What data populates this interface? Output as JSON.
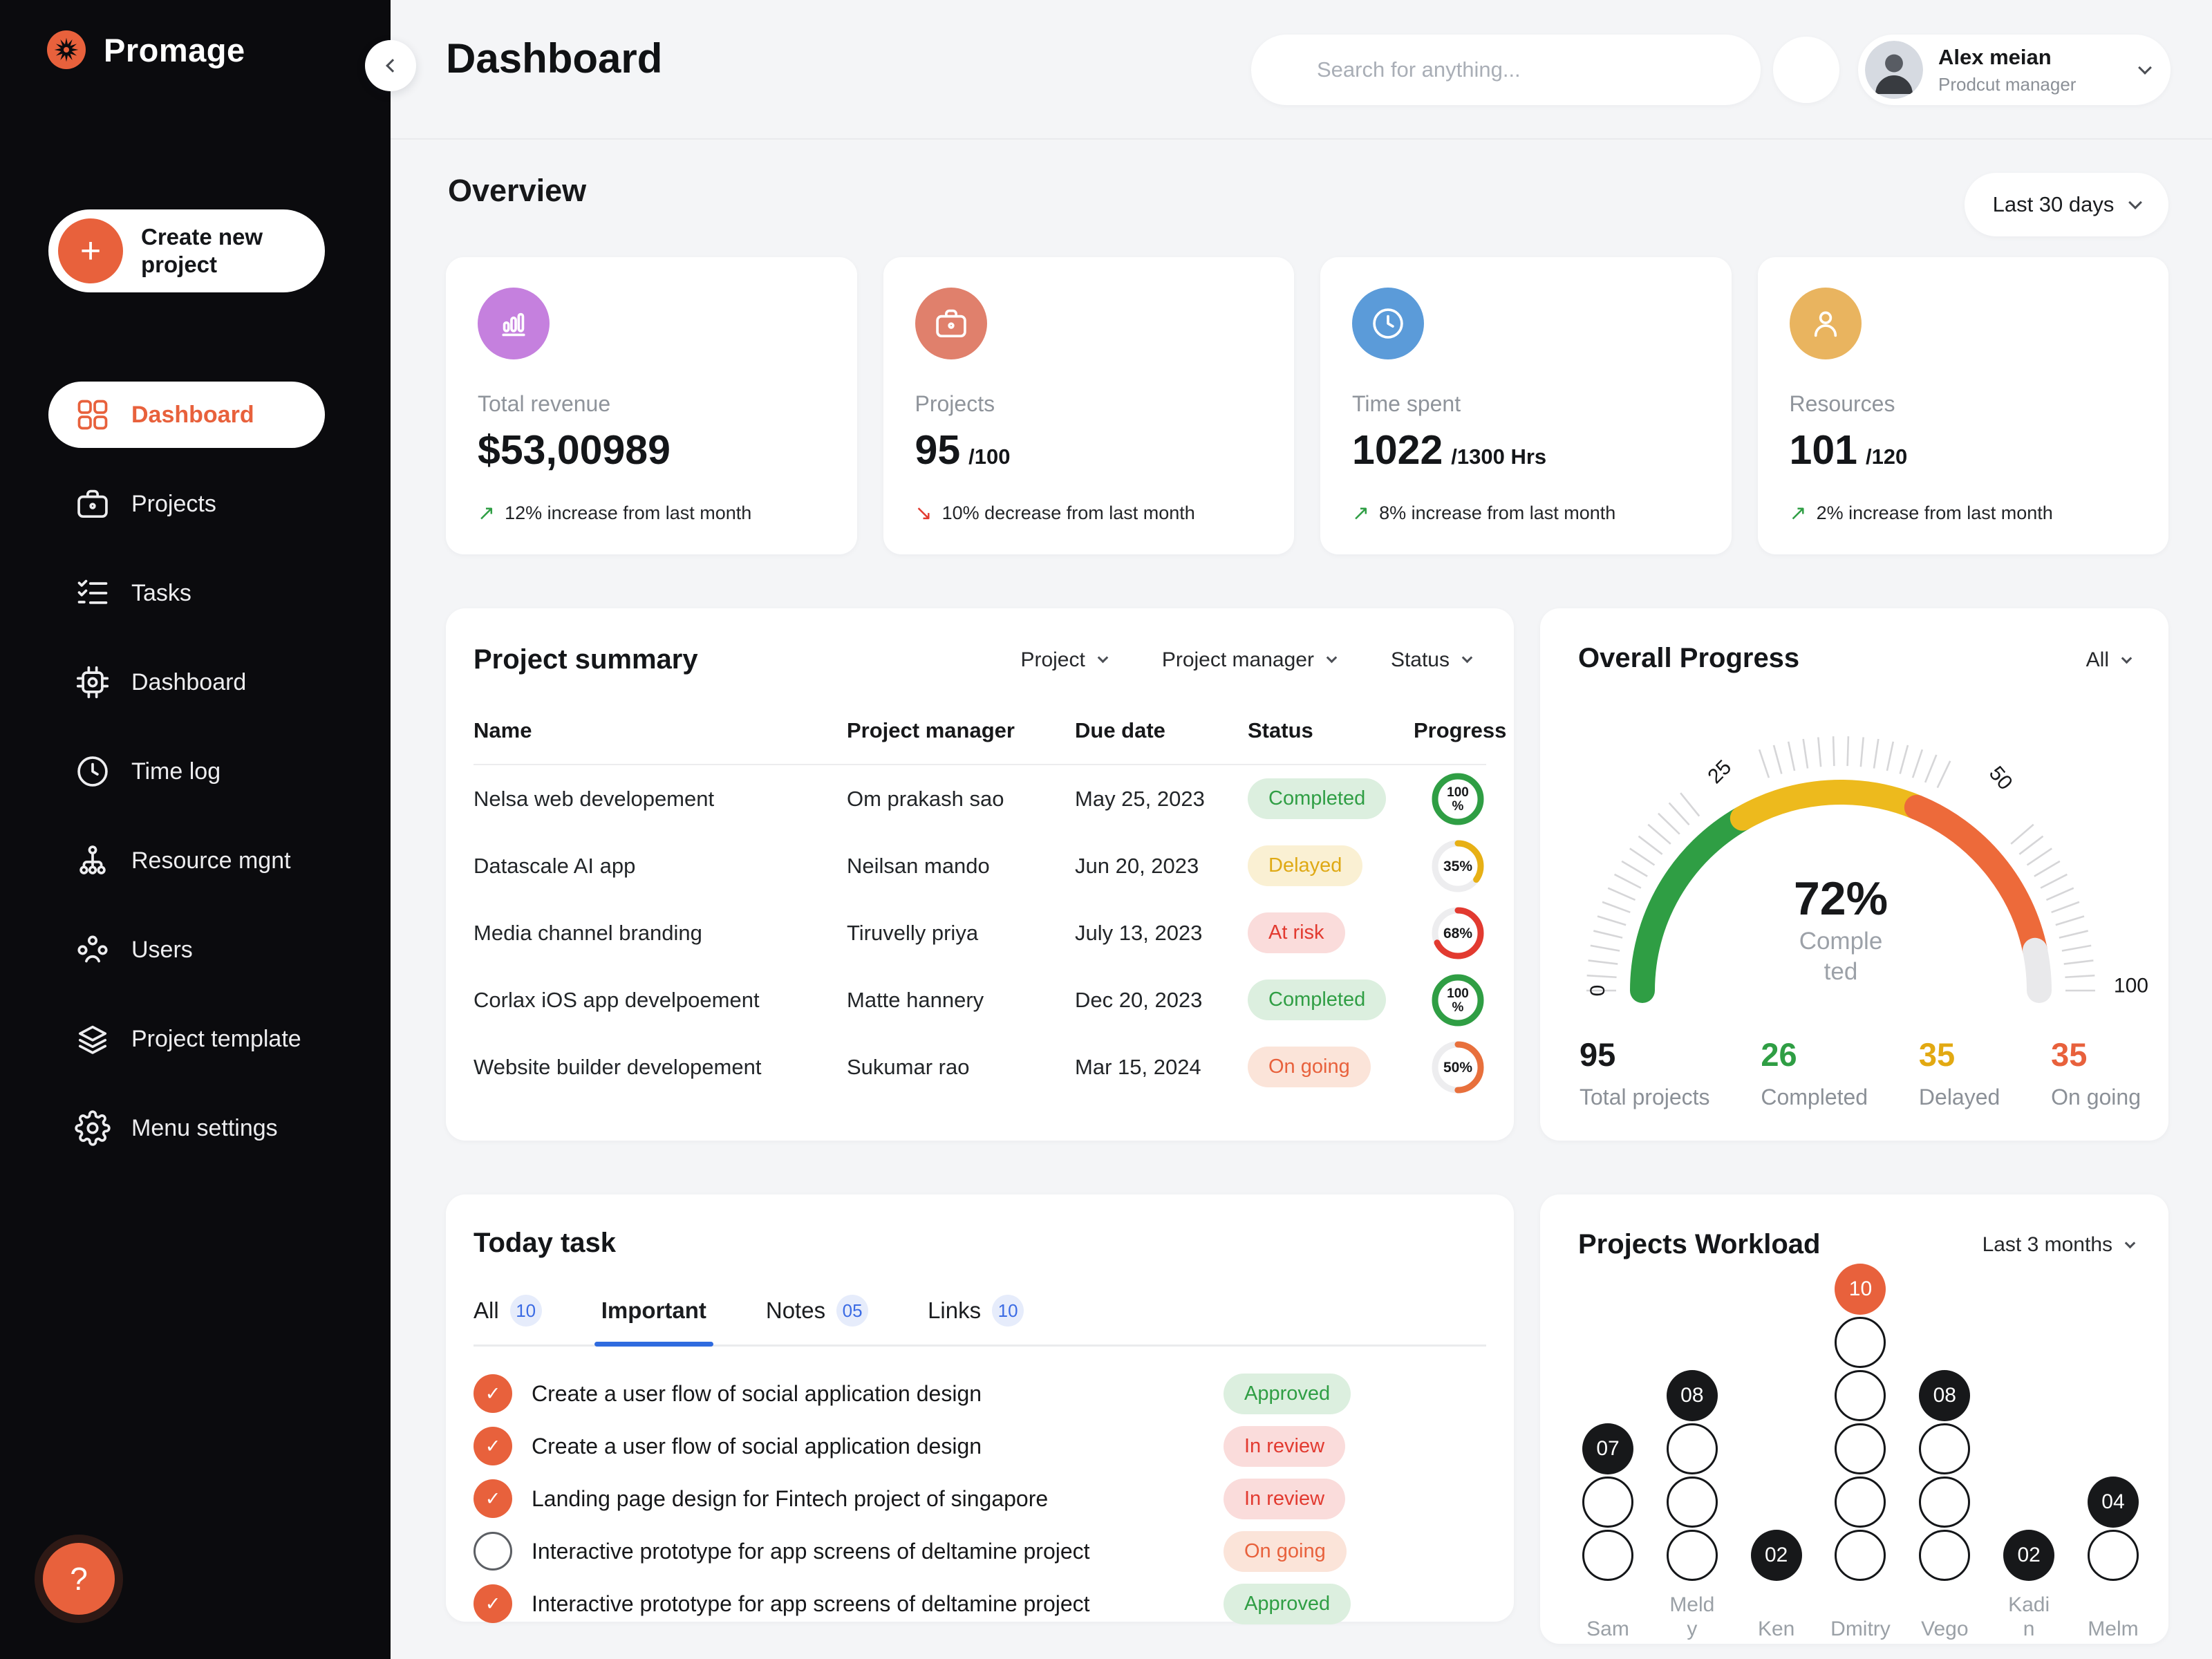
{
  "app": {
    "logo_text": "Promage"
  },
  "colors": {
    "accent_orange": "#E8613C",
    "sidebar_bg": "#0B0B0E",
    "tab_blue": "#2F6BDF",
    "up_green": "#2F9E44",
    "down_red": "#E23A30"
  },
  "sidebar": {
    "create_button": {
      "label": "Create new project"
    },
    "items": [
      {
        "label": "Dashboard",
        "icon": "grid-icon",
        "active": true
      },
      {
        "label": "Projects",
        "icon": "briefcase-icon",
        "active": false
      },
      {
        "label": "Tasks",
        "icon": "checklist-icon",
        "active": false
      },
      {
        "label": "Dashboard",
        "icon": "cpu-icon",
        "active": false
      },
      {
        "label": "Time log",
        "icon": "clock-icon",
        "active": false
      },
      {
        "label": "Resource mgnt",
        "icon": "hierarchy-icon",
        "active": false
      },
      {
        "label": "Users",
        "icon": "users-icon",
        "active": false
      },
      {
        "label": "Project template",
        "icon": "layers-icon",
        "active": false
      },
      {
        "label": "Menu settings",
        "icon": "gear-icon",
        "active": false
      }
    ],
    "help_label": "?"
  },
  "header": {
    "title": "Dashboard",
    "search_placeholder": "Search for anything...",
    "user": {
      "name": "Alex meian",
      "role": "Prodcut manager"
    }
  },
  "overview": {
    "title": "Overview",
    "range": "Last 30 days",
    "cards": [
      {
        "label": "Total revenue",
        "value": "$53,00989",
        "suffix": "",
        "delta": "12% increase from last month",
        "direction": "up",
        "icon": "bar-chart-icon",
        "icon_bg": "#C580DE"
      },
      {
        "label": "Projects",
        "value": "95",
        "suffix": "/100",
        "delta": "10% decrease from last month",
        "direction": "down",
        "icon": "briefcase-icon",
        "icon_bg": "#E0806C"
      },
      {
        "label": "Time spent",
        "value": "1022",
        "suffix": "/1300 Hrs",
        "delta": "8% increase from last month",
        "direction": "up",
        "icon": "clock-icon",
        "icon_bg": "#5B9BD9"
      },
      {
        "label": "Resources",
        "value": "101",
        "suffix": "/120",
        "delta": "2% increase from last month",
        "direction": "up",
        "icon": "person-icon",
        "icon_bg": "#E9B45F"
      }
    ]
  },
  "status_styles": {
    "Completed": {
      "bg": "#DCEFDF",
      "fg": "#2F9E44"
    },
    "Delayed": {
      "bg": "#FAF0D3",
      "fg": "#DFA914"
    },
    "At risk": {
      "bg": "#FADCDB",
      "fg": "#E23A30"
    },
    "On going": {
      "bg": "#FBE4D9",
      "fg": "#E8613C"
    },
    "Approved": {
      "bg": "#DCEFDF",
      "fg": "#2F9E44"
    },
    "In review": {
      "bg": "#FADCDB",
      "fg": "#E23A30"
    }
  },
  "project_summary": {
    "title": "Project summary",
    "filters": [
      "Project",
      "Project manager",
      "Status"
    ],
    "columns": [
      "Name",
      "Project manager",
      "Due date",
      "Status",
      "Progress"
    ],
    "rows": [
      {
        "name": "Nelsa web developement",
        "manager": "Om prakash sao",
        "due": "May 25, 2023",
        "status": "Completed",
        "progress": 100,
        "ring": "#2F9E44"
      },
      {
        "name": "Datascale AI app",
        "manager": "Neilsan mando",
        "due": "Jun 20, 2023",
        "status": "Delayed",
        "progress": 35,
        "ring": "#E7B015"
      },
      {
        "name": "Media channel branding",
        "manager": "Tiruvelly priya",
        "due": "July 13, 2023",
        "status": "At risk",
        "progress": 68,
        "ring": "#E23A30"
      },
      {
        "name": "Corlax iOS app develpoement",
        "manager": "Matte hannery",
        "due": "Dec 20, 2023",
        "status": "Completed",
        "progress": 100,
        "ring": "#2F9E44"
      },
      {
        "name": "Website builder developement",
        "manager": "Sukumar rao",
        "due": "Mar 15, 2024",
        "status": "On going",
        "progress": 50,
        "ring": "#E8703C"
      }
    ]
  },
  "overall_progress": {
    "title": "Overall Progress",
    "filter": "All",
    "value": "72%",
    "caption_lines": [
      "Comple",
      "ted"
    ],
    "segments": [
      {
        "from": 0,
        "to": 0.335,
        "color": "#2F9E44"
      },
      {
        "from": 0.335,
        "to": 0.625,
        "color": "#EDBA1D"
      },
      {
        "from": 0.625,
        "to": 0.935,
        "color": "#ED6A3A"
      },
      {
        "from": 0.935,
        "to": 1.0,
        "color": "#E9E9EB"
      }
    ],
    "axis_labels": [
      {
        "text": "0",
        "angle": 180,
        "r": 352,
        "rot": -90
      },
      {
        "text": "25",
        "angle": 119,
        "r": 362,
        "rot": -45
      },
      {
        "text": "50",
        "angle": 53,
        "r": 385,
        "rot": 50
      },
      {
        "text": "100",
        "angle": 1,
        "r": 420,
        "rot": 0
      }
    ],
    "stats": [
      {
        "value": "95",
        "label": "Total projects",
        "color": "#17181A"
      },
      {
        "value": "26",
        "label": "Completed",
        "color": "#2F9E44"
      },
      {
        "value": "35",
        "label": "Delayed",
        "color": "#E2A912"
      },
      {
        "value": "35",
        "label": "On going",
        "color": "#E8613C"
      }
    ]
  },
  "today_task": {
    "title": "Today task",
    "tabs": [
      {
        "label": "All",
        "badge": "10",
        "active": false
      },
      {
        "label": "Important",
        "badge": "",
        "active": true
      },
      {
        "label": "Notes",
        "badge": "05",
        "active": false
      },
      {
        "label": "Links",
        "badge": "10",
        "active": false
      }
    ],
    "tasks": [
      {
        "text": "Create a user flow of social application design",
        "done": true,
        "status": "Approved"
      },
      {
        "text": "Create a user flow of social application design",
        "done": true,
        "status": "In review"
      },
      {
        "text": "Landing page design for Fintech project of singapore",
        "done": true,
        "status": "In review"
      },
      {
        "text": "Interactive prototype for app screens of deltamine project",
        "done": false,
        "status": "On going"
      },
      {
        "text": "Interactive prototype for app screens of deltamine project",
        "done": true,
        "status": "Approved"
      }
    ]
  },
  "workload": {
    "title": "Projects Workload",
    "range": "Last 3 months",
    "people": [
      {
        "name": "Sam",
        "label_lines": [
          "Sam"
        ],
        "value": "07",
        "extra_circles": 2,
        "badge_color": "#17181A"
      },
      {
        "name": "Meldy",
        "label_lines": [
          "Meld",
          "y"
        ],
        "value": "08",
        "extra_circles": 3,
        "badge_color": "#17181A"
      },
      {
        "name": "Ken",
        "label_lines": [
          "Ken"
        ],
        "value": "02",
        "extra_circles": 0,
        "badge_color": "#17181A"
      },
      {
        "name": "Dmitry",
        "label_lines": [
          "Dmitry"
        ],
        "value": "10",
        "extra_circles": 5,
        "badge_color": "#E8613C"
      },
      {
        "name": "Vego",
        "label_lines": [
          "Vego"
        ],
        "value": "08",
        "extra_circles": 3,
        "badge_color": "#17181A"
      },
      {
        "name": "Kadin",
        "label_lines": [
          "Kadi",
          "n"
        ],
        "value": "02",
        "extra_circles": 0,
        "badge_color": "#17181A"
      },
      {
        "name": "Melm",
        "label_lines": [
          "Melm"
        ],
        "value": "04",
        "extra_circles": 1,
        "badge_color": "#17181A"
      }
    ]
  }
}
